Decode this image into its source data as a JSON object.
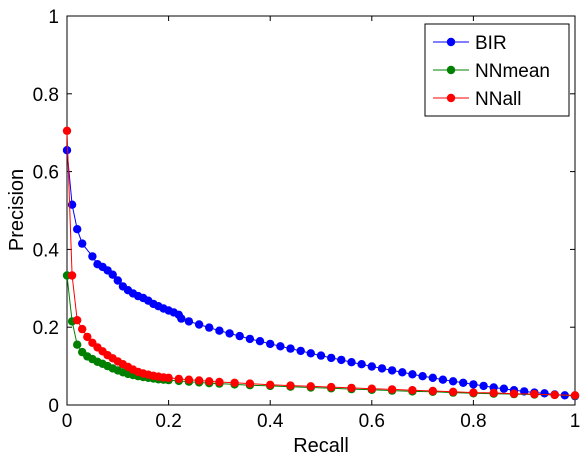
{
  "chart_data": {
    "type": "line",
    "title": "",
    "xlabel": "Recall",
    "ylabel": "Precision",
    "xlim": [
      0,
      1
    ],
    "ylim": [
      0,
      1
    ],
    "xticks": [
      0,
      0.2,
      0.4,
      0.6,
      0.8,
      1
    ],
    "xtick_labels": [
      "0",
      "0.2",
      "0.4",
      "0.6",
      "0.8",
      "1"
    ],
    "yticks": [
      0,
      0.2,
      0.4,
      0.6,
      0.8,
      1
    ],
    "ytick_labels": [
      "0",
      "0.2",
      "0.4",
      "0.6",
      "0.8",
      "1"
    ],
    "grid": false,
    "legend_position": "top-right",
    "series": [
      {
        "name": "BIR",
        "color": "#0000ff",
        "points": [
          [
            0.0,
            0.655
          ],
          [
            0.01,
            0.515
          ],
          [
            0.02,
            0.452
          ],
          [
            0.03,
            0.415
          ],
          [
            0.05,
            0.382
          ],
          [
            0.06,
            0.362
          ],
          [
            0.07,
            0.355
          ],
          [
            0.08,
            0.346
          ],
          [
            0.09,
            0.335
          ],
          [
            0.1,
            0.32
          ],
          [
            0.11,
            0.305
          ],
          [
            0.12,
            0.295
          ],
          [
            0.13,
            0.287
          ],
          [
            0.14,
            0.28
          ],
          [
            0.15,
            0.275
          ],
          [
            0.16,
            0.268
          ],
          [
            0.17,
            0.26
          ],
          [
            0.18,
            0.254
          ],
          [
            0.19,
            0.248
          ],
          [
            0.2,
            0.243
          ],
          [
            0.21,
            0.238
          ],
          [
            0.22,
            0.232
          ],
          [
            0.225,
            0.222
          ],
          [
            0.24,
            0.215
          ],
          [
            0.26,
            0.207
          ],
          [
            0.28,
            0.199
          ],
          [
            0.3,
            0.191
          ],
          [
            0.32,
            0.184
          ],
          [
            0.34,
            0.177
          ],
          [
            0.36,
            0.17
          ],
          [
            0.38,
            0.164
          ],
          [
            0.4,
            0.157
          ],
          [
            0.42,
            0.151
          ],
          [
            0.44,
            0.145
          ],
          [
            0.46,
            0.139
          ],
          [
            0.48,
            0.133
          ],
          [
            0.5,
            0.127
          ],
          [
            0.52,
            0.121
          ],
          [
            0.54,
            0.116
          ],
          [
            0.56,
            0.11
          ],
          [
            0.58,
            0.105
          ],
          [
            0.6,
            0.099
          ],
          [
            0.62,
            0.094
          ],
          [
            0.64,
            0.089
          ],
          [
            0.66,
            0.084
          ],
          [
            0.68,
            0.079
          ],
          [
            0.7,
            0.074
          ],
          [
            0.72,
            0.07
          ],
          [
            0.74,
            0.065
          ],
          [
            0.76,
            0.061
          ],
          [
            0.78,
            0.057
          ],
          [
            0.8,
            0.053
          ],
          [
            0.82,
            0.049
          ],
          [
            0.84,
            0.045
          ],
          [
            0.86,
            0.042
          ],
          [
            0.88,
            0.038
          ],
          [
            0.9,
            0.035
          ],
          [
            0.92,
            0.032
          ],
          [
            0.94,
            0.03
          ],
          [
            0.96,
            0.027
          ],
          [
            0.98,
            0.025
          ],
          [
            1.0,
            0.023
          ]
        ]
      },
      {
        "name": "NNmean",
        "color": "#008000",
        "points": [
          [
            0.0,
            0.333
          ],
          [
            0.01,
            0.215
          ],
          [
            0.02,
            0.155
          ],
          [
            0.03,
            0.136
          ],
          [
            0.04,
            0.125
          ],
          [
            0.05,
            0.118
          ],
          [
            0.06,
            0.111
          ],
          [
            0.07,
            0.106
          ],
          [
            0.08,
            0.1
          ],
          [
            0.09,
            0.094
          ],
          [
            0.1,
            0.089
          ],
          [
            0.11,
            0.084
          ],
          [
            0.12,
            0.08
          ],
          [
            0.13,
            0.077
          ],
          [
            0.14,
            0.074
          ],
          [
            0.15,
            0.072
          ],
          [
            0.16,
            0.07
          ],
          [
            0.17,
            0.068
          ],
          [
            0.18,
            0.066
          ],
          [
            0.19,
            0.065
          ],
          [
            0.2,
            0.064
          ],
          [
            0.22,
            0.062
          ],
          [
            0.24,
            0.06
          ],
          [
            0.26,
            0.058
          ],
          [
            0.28,
            0.056
          ],
          [
            0.3,
            0.055
          ],
          [
            0.33,
            0.053
          ],
          [
            0.36,
            0.051
          ],
          [
            0.4,
            0.049
          ],
          [
            0.44,
            0.047
          ],
          [
            0.48,
            0.045
          ],
          [
            0.52,
            0.043
          ],
          [
            0.56,
            0.041
          ],
          [
            0.6,
            0.039
          ],
          [
            0.64,
            0.037
          ],
          [
            0.68,
            0.035
          ],
          [
            0.72,
            0.034
          ],
          [
            0.76,
            0.032
          ],
          [
            0.8,
            0.03
          ],
          [
            0.84,
            0.029
          ],
          [
            0.88,
            0.028
          ],
          [
            0.92,
            0.027
          ],
          [
            0.96,
            0.026
          ],
          [
            1.0,
            0.024
          ]
        ]
      },
      {
        "name": "NNall",
        "color": "#ff0000",
        "points": [
          [
            0.0,
            0.705
          ],
          [
            0.01,
            0.333
          ],
          [
            0.02,
            0.218
          ],
          [
            0.03,
            0.195
          ],
          [
            0.04,
            0.175
          ],
          [
            0.05,
            0.16
          ],
          [
            0.06,
            0.148
          ],
          [
            0.07,
            0.138
          ],
          [
            0.08,
            0.128
          ],
          [
            0.09,
            0.12
          ],
          [
            0.1,
            0.112
          ],
          [
            0.11,
            0.105
          ],
          [
            0.12,
            0.098
          ],
          [
            0.13,
            0.091
          ],
          [
            0.14,
            0.085
          ],
          [
            0.15,
            0.081
          ],
          [
            0.16,
            0.078
          ],
          [
            0.17,
            0.075
          ],
          [
            0.18,
            0.073
          ],
          [
            0.19,
            0.071
          ],
          [
            0.2,
            0.07
          ],
          [
            0.22,
            0.067
          ],
          [
            0.24,
            0.065
          ],
          [
            0.26,
            0.063
          ],
          [
            0.28,
            0.061
          ],
          [
            0.3,
            0.059
          ],
          [
            0.33,
            0.057
          ],
          [
            0.36,
            0.055
          ],
          [
            0.4,
            0.052
          ],
          [
            0.44,
            0.05
          ],
          [
            0.48,
            0.048
          ],
          [
            0.52,
            0.046
          ],
          [
            0.56,
            0.044
          ],
          [
            0.6,
            0.042
          ],
          [
            0.64,
            0.04
          ],
          [
            0.68,
            0.038
          ],
          [
            0.72,
            0.036
          ],
          [
            0.76,
            0.034
          ],
          [
            0.8,
            0.032
          ],
          [
            0.84,
            0.031
          ],
          [
            0.88,
            0.029
          ],
          [
            0.92,
            0.028
          ],
          [
            0.96,
            0.026
          ],
          [
            1.0,
            0.025
          ]
        ]
      }
    ]
  }
}
